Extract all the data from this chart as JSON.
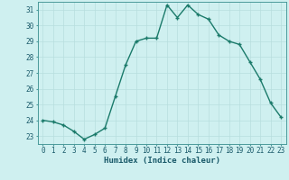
{
  "x": [
    0,
    1,
    2,
    3,
    4,
    5,
    6,
    7,
    8,
    9,
    10,
    11,
    12,
    13,
    14,
    15,
    16,
    17,
    18,
    19,
    20,
    21,
    22,
    23
  ],
  "y": [
    24.0,
    23.9,
    23.7,
    23.3,
    22.8,
    23.1,
    23.5,
    25.5,
    27.5,
    29.0,
    29.2,
    29.2,
    31.3,
    30.5,
    31.3,
    30.7,
    30.4,
    29.4,
    29.0,
    28.8,
    27.7,
    26.6,
    25.1,
    24.2
  ],
  "line_color": "#1a7a6a",
  "marker": "+",
  "marker_size": 3,
  "bg_color": "#cff0f0",
  "grid_color": "#b8dede",
  "xlabel": "Humidex (Indice chaleur)",
  "xlim": [
    -0.5,
    23.5
  ],
  "ylim": [
    22.5,
    31.5
  ],
  "yticks": [
    23,
    24,
    25,
    26,
    27,
    28,
    29,
    30,
    31
  ],
  "xticks": [
    0,
    1,
    2,
    3,
    4,
    5,
    6,
    7,
    8,
    9,
    10,
    11,
    12,
    13,
    14,
    15,
    16,
    17,
    18,
    19,
    20,
    21,
    22,
    23
  ],
  "xlabel_fontsize": 6.5,
  "tick_fontsize": 5.5,
  "line_width": 1.0,
  "marker_color": "#1a7a6a"
}
